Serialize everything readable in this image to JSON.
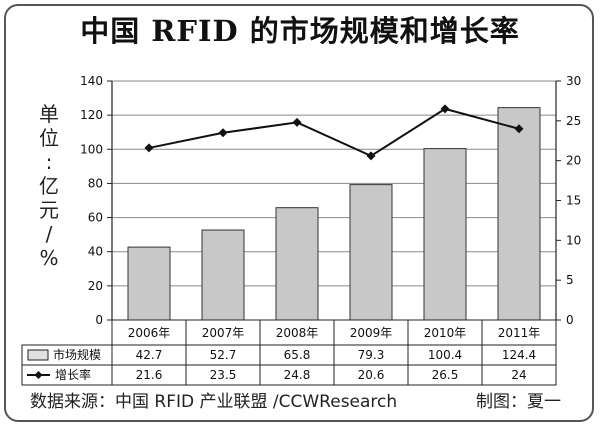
{
  "title": "中国 RFID 的市场规模和增长率",
  "unit_chars": [
    "单",
    "位",
    ":",
    "亿",
    "元",
    "/",
    "%"
  ],
  "source": "数据来源：中国 RFID 产业联盟 /CCWResearch",
  "credit": "制图：夏一",
  "colors": {
    "bar_fill": "#c8c8c8",
    "bar_stroke": "#333333",
    "line": "#111111",
    "frame": "#555555"
  },
  "chart_data": {
    "type": "bar",
    "categories": [
      "2006年",
      "2007年",
      "2008年",
      "2009年",
      "2010年",
      "2011年"
    ],
    "left_axis": {
      "min": 0,
      "max": 140,
      "step": 20,
      "ticks": [
        "0",
        "20",
        "40",
        "60",
        "80",
        "100",
        "120",
        "140"
      ]
    },
    "right_axis": {
      "min": 0,
      "max": 30,
      "step": 5,
      "ticks": [
        "0",
        "5",
        "10",
        "15",
        "20",
        "25",
        "30"
      ]
    },
    "grid": "horizontal",
    "legend": "table-below",
    "series": [
      {
        "name": "市场规模",
        "type": "bar",
        "axis": "left",
        "values": [
          42.7,
          52.7,
          65.8,
          79.3,
          100.4,
          124.4
        ],
        "labels": [
          "42.7",
          "52.7",
          "65.8",
          "79.3",
          "100.4",
          "124.4"
        ]
      },
      {
        "name": "增长率",
        "type": "line",
        "axis": "right",
        "values": [
          21.6,
          23.5,
          24.8,
          20.6,
          26.5,
          24
        ],
        "labels": [
          "21.6",
          "23.5",
          "24.8",
          "20.6",
          "26.5",
          "24"
        ]
      }
    ]
  }
}
